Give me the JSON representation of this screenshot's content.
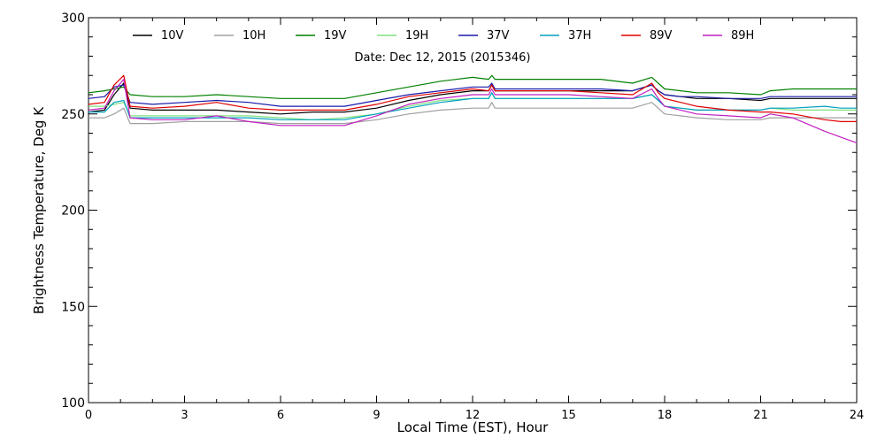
{
  "chart_data": {
    "type": "line",
    "title": "",
    "annotation": "Date: Dec 12, 2015 (2015346)",
    "xlabel": "Local Time (EST), Hour",
    "ylabel": "Brightness Temperature, Deg K",
    "xlim": [
      0,
      24
    ],
    "ylim": [
      100,
      300
    ],
    "x_ticks": [
      0,
      3,
      6,
      9,
      12,
      15,
      18,
      21,
      24
    ],
    "y_ticks": [
      100,
      150,
      200,
      250,
      300
    ],
    "x_tick_labels": [
      "0",
      "3",
      "6",
      "9",
      "12",
      "15",
      "18",
      "21",
      "24"
    ],
    "y_tick_labels": [
      "100",
      "150",
      "200",
      "250",
      "300"
    ],
    "legend_position": "top",
    "grid": false,
    "x": [
      0,
      0.5,
      0.8,
      1.1,
      1.3,
      2,
      3,
      4,
      5,
      6,
      7,
      8,
      9,
      10,
      11,
      12,
      12.5,
      12.6,
      12.7,
      13,
      14,
      15,
      16,
      17,
      17.6,
      17.8,
      18,
      18.5,
      19,
      20,
      21,
      21.3,
      22,
      23,
      23.5,
      24
    ],
    "series": [
      {
        "name": "10V",
        "color": "#000000",
        "values": [
          251,
          252,
          260,
          266,
          253,
          252,
          252,
          252,
          251,
          250,
          251,
          251,
          253,
          257,
          260,
          262,
          262,
          265,
          262,
          262,
          262,
          262,
          262,
          262,
          265,
          262,
          260,
          259,
          258,
          258,
          257,
          258,
          258,
          258,
          258,
          258
        ]
      },
      {
        "name": "10H",
        "color": "#a0a0a0",
        "values": [
          248,
          248,
          250,
          253,
          245,
          245,
          246,
          246,
          246,
          245,
          245,
          245,
          247,
          250,
          252,
          253,
          253,
          256,
          253,
          253,
          253,
          253,
          253,
          253,
          256,
          253,
          250,
          249,
          248,
          247,
          247,
          248,
          248,
          248,
          248,
          248
        ]
      },
      {
        "name": "19V",
        "color": "#008000",
        "values": [
          261,
          262,
          263,
          264,
          260,
          259,
          259,
          260,
          259,
          258,
          258,
          258,
          261,
          264,
          267,
          269,
          268,
          270,
          268,
          268,
          268,
          268,
          268,
          266,
          269,
          266,
          263,
          262,
          261,
          261,
          260,
          262,
          263,
          263,
          263,
          263
        ]
      },
      {
        "name": "19H",
        "color": "#80e080",
        "values": [
          254,
          254,
          255,
          256,
          249,
          249,
          249,
          249,
          249,
          248,
          247,
          248,
          250,
          254,
          257,
          258,
          258,
          261,
          258,
          258,
          258,
          258,
          258,
          258,
          260,
          257,
          254,
          253,
          252,
          252,
          252,
          253,
          252,
          252,
          252,
          252
        ]
      },
      {
        "name": "37V",
        "color": "#1a1aaa",
        "values": [
          258,
          259,
          264,
          265,
          256,
          255,
          256,
          257,
          256,
          254,
          254,
          254,
          257,
          260,
          262,
          264,
          264,
          266,
          263,
          263,
          263,
          263,
          263,
          262,
          265,
          262,
          260,
          259,
          259,
          258,
          258,
          259,
          259,
          259,
          259,
          259
        ]
      },
      {
        "name": "37H",
        "color": "#00a0c0",
        "values": [
          251,
          251,
          256,
          257,
          248,
          248,
          248,
          248,
          248,
          247,
          247,
          247,
          250,
          253,
          256,
          258,
          258,
          261,
          258,
          258,
          258,
          258,
          258,
          258,
          260,
          257,
          254,
          253,
          252,
          252,
          252,
          253,
          253,
          254,
          253,
          253
        ]
      },
      {
        "name": "89V",
        "color": "#e00000",
        "values": [
          255,
          256,
          265,
          270,
          254,
          253,
          254,
          256,
          253,
          252,
          252,
          252,
          255,
          259,
          261,
          263,
          262,
          265,
          262,
          262,
          262,
          262,
          261,
          260,
          266,
          261,
          258,
          256,
          254,
          252,
          251,
          251,
          250,
          247,
          246,
          246
        ]
      },
      {
        "name": "89H",
        "color": "#c020c0",
        "values": [
          252,
          253,
          262,
          268,
          248,
          247,
          247,
          249,
          246,
          244,
          244,
          244,
          249,
          255,
          258,
          260,
          260,
          263,
          260,
          260,
          260,
          260,
          259,
          258,
          263,
          258,
          254,
          252,
          250,
          249,
          248,
          250,
          248,
          241,
          238,
          235
        ]
      }
    ]
  }
}
